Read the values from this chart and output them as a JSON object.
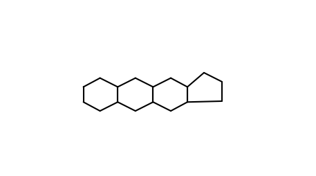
{
  "background_color": "#ffffff",
  "line_color": "#000000",
  "line_width": 1.5,
  "text_color": "#000000",
  "font_size": 7,
  "title": "",
  "figsize": [
    4.57,
    2.54
  ],
  "dpi": 100
}
